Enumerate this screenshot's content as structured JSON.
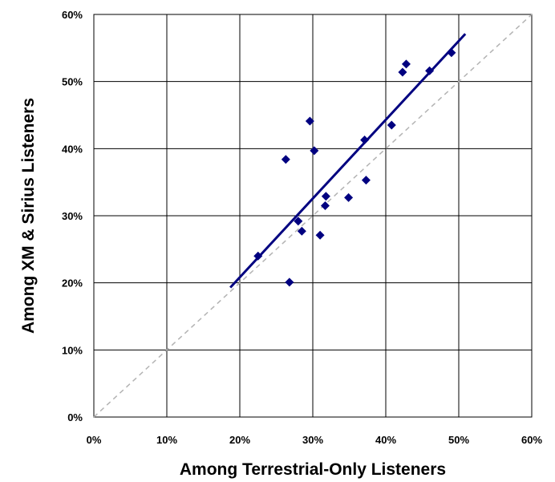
{
  "chart_data": {
    "type": "scatter",
    "title": "",
    "xlabel": "Among Terrestrial-Only Listeners",
    "ylabel": "Among XM & Sirius Listeners",
    "xlim": [
      0,
      0.6
    ],
    "ylim": [
      0,
      0.6
    ],
    "xticks": [
      "0%",
      "10%",
      "20%",
      "30%",
      "40%",
      "50%",
      "60%"
    ],
    "yticks": [
      "0%",
      "10%",
      "20%",
      "30%",
      "40%",
      "50%",
      "60%"
    ],
    "grid": true,
    "legend": "none",
    "series": [
      {
        "marker": "diamond",
        "color": "#000080",
        "points": [
          {
            "x": 0.225,
            "y": 0.24
          },
          {
            "x": 0.263,
            "y": 0.384
          },
          {
            "x": 0.268,
            "y": 0.201
          },
          {
            "x": 0.28,
            "y": 0.292
          },
          {
            "x": 0.285,
            "y": 0.277
          },
          {
            "x": 0.296,
            "y": 0.441
          },
          {
            "x": 0.302,
            "y": 0.397
          },
          {
            "x": 0.31,
            "y": 0.271
          },
          {
            "x": 0.317,
            "y": 0.315
          },
          {
            "x": 0.318,
            "y": 0.329
          },
          {
            "x": 0.349,
            "y": 0.327
          },
          {
            "x": 0.371,
            "y": 0.413
          },
          {
            "x": 0.373,
            "y": 0.353
          },
          {
            "x": 0.408,
            "y": 0.435
          },
          {
            "x": 0.423,
            "y": 0.514
          },
          {
            "x": 0.428,
            "y": 0.526
          },
          {
            "x": 0.46,
            "y": 0.516
          },
          {
            "x": 0.49,
            "y": 0.543
          }
        ]
      }
    ],
    "trendline": {
      "x": [
        0.187,
        0.509
      ],
      "y": [
        0.193,
        0.571
      ],
      "color": "#000080"
    },
    "reference_line": {
      "x": [
        0,
        0.6
      ],
      "y": [
        0,
        0.6
      ],
      "color": "#b3b3b3",
      "style": "dashed"
    }
  }
}
